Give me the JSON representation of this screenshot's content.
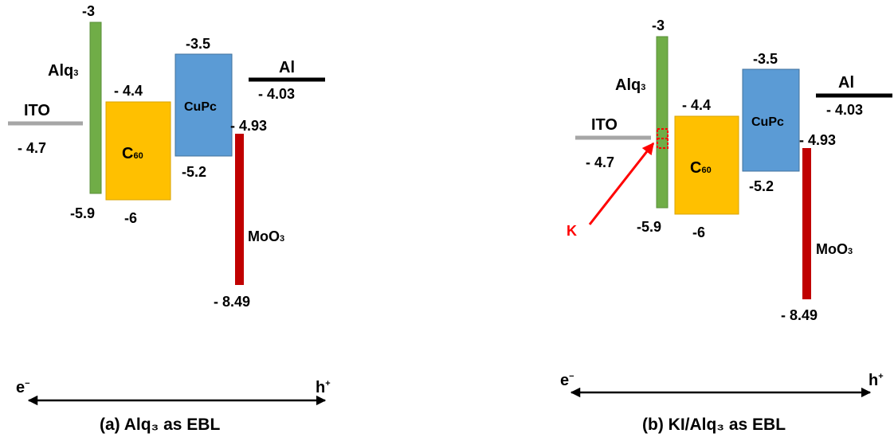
{
  "colors": {
    "ito": "#a6a6a6",
    "alq3": "#70ad47",
    "c60": "#ffc000",
    "cupc": "#5b9bd5",
    "moo3": "#c00000",
    "al": "#000000",
    "arrow_k": "#ff0000"
  },
  "panels": [
    {
      "caption": "(a) Alq₃ as EBL",
      "ito": {
        "name": "ITO",
        "level": "- 4.7"
      },
      "alq3": {
        "name": "Alq",
        "sub": "3",
        "lumo": "-3",
        "homo": "-5.9"
      },
      "c60": {
        "name": "C",
        "sub": "60",
        "lumo": "- 4.4",
        "homo": "-6"
      },
      "cupc": {
        "name": "CuPc",
        "lumo": "-3.5",
        "homo": "-5.2"
      },
      "moo3": {
        "name": "MoO",
        "sub": "3",
        "lumo": "- 4.93",
        "homo": "- 8.49"
      },
      "al": {
        "name": "Al",
        "level": "- 4.03"
      },
      "electron": "e",
      "electron_sup": "−",
      "hole": "h",
      "hole_sup": "+"
    },
    {
      "caption": "(b) KI/Alq₃ as EBL",
      "ito": {
        "name": "ITO",
        "level": "- 4.7"
      },
      "alq3": {
        "name": "Alq",
        "sub": "3",
        "lumo": "-3",
        "homo": "-5.9"
      },
      "c60": {
        "name": "C",
        "sub": "60",
        "lumo": "- 4.4",
        "homo": "-6"
      },
      "cupc": {
        "name": "CuPc",
        "lumo": "-3.5",
        "homo": "-5.2"
      },
      "moo3": {
        "name": "MoO",
        "sub": "3",
        "lumo": "- 4.93",
        "homo": "- 8.49"
      },
      "al": {
        "name": "Al",
        "level": "- 4.03"
      },
      "k_label": "K",
      "electron": "e",
      "electron_sup": "−",
      "hole": "h",
      "hole_sup": "+"
    }
  ]
}
